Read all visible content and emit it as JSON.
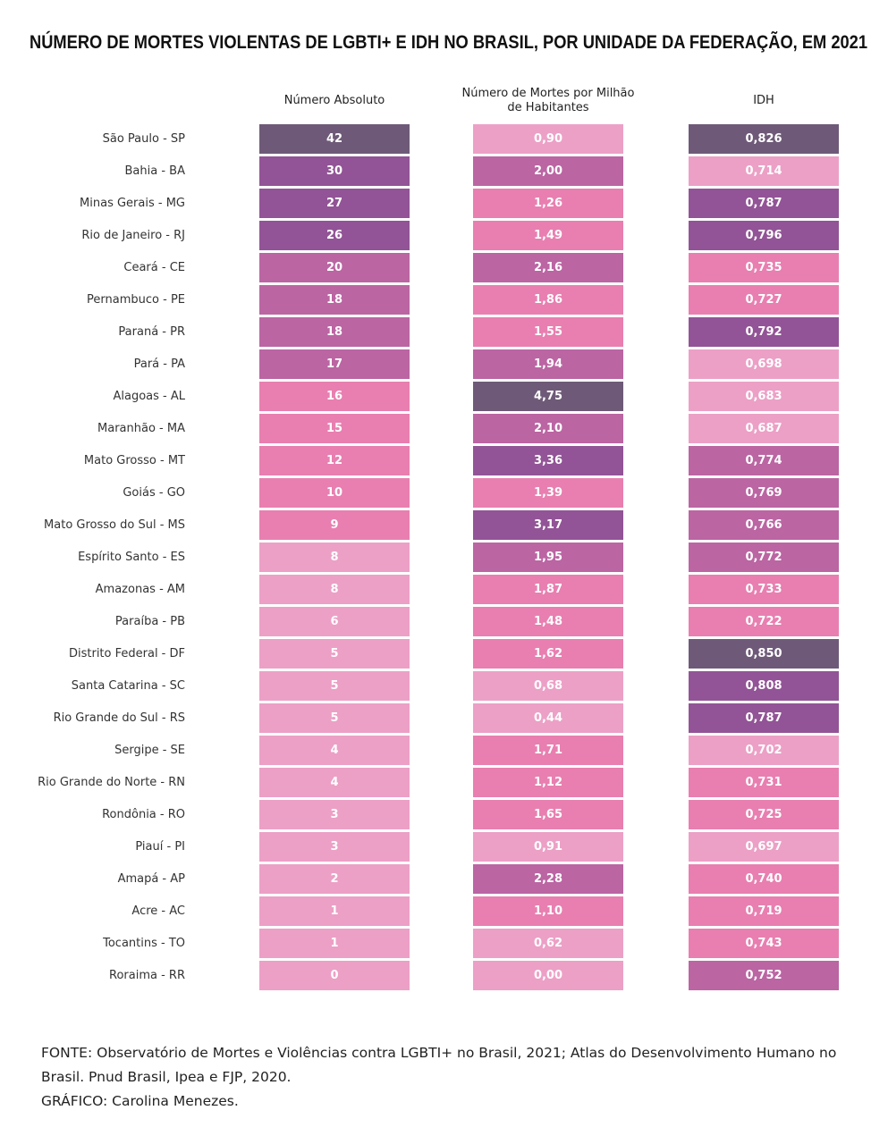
{
  "title": "NÚMERO DE MORTES VIOLENTAS DE LGBTI+ E IDH NO BRASIL, POR UNIDADE DA FEDERAÇÃO, EM 2021",
  "table": {
    "rows": [
      "São Paulo - SP",
      "Bahia - BA",
      "Minas Gerais - MG",
      "Rio de Janeiro - RJ",
      "Ceará - CE",
      "Pernambuco - PE",
      "Paraná - PR",
      "Pará - PA",
      "Alagoas - AL",
      "Maranhão - MA",
      "Mato Grosso - MT",
      "Goiás - GO",
      "Mato Grosso do Sul - MS",
      "Espírito Santo - ES",
      "Amazonas - AM",
      "Paraíba - PB",
      "Distrito Federal - DF",
      "Santa Catarina - SC",
      "Rio Grande do Sul - RS",
      "Sergipe - SE",
      "Rio Grande do Norte - RN",
      "Rondônia - RO",
      "Piauí - PI",
      "Amapá - AP",
      "Acre - AC",
      "Tocantins - TO",
      "Roraima - RR"
    ],
    "columns": [
      {
        "header": "Número Absoluto",
        "values": [
          "42",
          "30",
          "27",
          "26",
          "20",
          "18",
          "18",
          "17",
          "16",
          "15",
          "12",
          "10",
          "9",
          "8",
          "8",
          "6",
          "5",
          "5",
          "5",
          "4",
          "4",
          "3",
          "3",
          "2",
          "1",
          "1",
          "0"
        ],
        "colors": [
          "#6e5a78",
          "#925496",
          "#925496",
          "#925496",
          "#bb65a3",
          "#bb65a3",
          "#bb65a3",
          "#bb65a3",
          "#e87fb0",
          "#e87fb0",
          "#e87fb0",
          "#e87fb0",
          "#e87fb0",
          "#eca0c6",
          "#eca0c6",
          "#eca0c6",
          "#eca0c6",
          "#eca0c6",
          "#eca0c6",
          "#eca0c6",
          "#eca0c6",
          "#eca0c6",
          "#eca0c6",
          "#eca0c6",
          "#eca0c6",
          "#eca0c6",
          "#eca0c6"
        ]
      },
      {
        "header": "Número de Mortes por Milhão de Habitantes",
        "values": [
          "0,90",
          "2,00",
          "1,26",
          "1,49",
          "2,16",
          "1,86",
          "1,55",
          "1,94",
          "4,75",
          "2,10",
          "3,36",
          "1,39",
          "3,17",
          "1,95",
          "1,87",
          "1,48",
          "1,62",
          "0,68",
          "0,44",
          "1,71",
          "1,12",
          "1,65",
          "0,91",
          "2,28",
          "1,10",
          "0,62",
          "0,00"
        ],
        "colors": [
          "#eca0c6",
          "#bb65a3",
          "#e87fb0",
          "#e87fb0",
          "#bb65a3",
          "#e87fb0",
          "#e87fb0",
          "#bb65a3",
          "#6e5a78",
          "#bb65a3",
          "#925496",
          "#e87fb0",
          "#925496",
          "#bb65a3",
          "#e87fb0",
          "#e87fb0",
          "#e87fb0",
          "#eca0c6",
          "#eca0c6",
          "#e87fb0",
          "#e87fb0",
          "#e87fb0",
          "#eca0c6",
          "#bb65a3",
          "#e87fb0",
          "#eca0c6",
          "#eca0c6"
        ]
      },
      {
        "header": "IDH",
        "values": [
          "0,826",
          "0,714",
          "0,787",
          "0,796",
          "0,735",
          "0,727",
          "0,792",
          "0,698",
          "0,683",
          "0,687",
          "0,774",
          "0,769",
          "0,766",
          "0,772",
          "0,733",
          "0,722",
          "0,850",
          "0,808",
          "0,787",
          "0,702",
          "0,731",
          "0,725",
          "0,697",
          "0,740",
          "0,719",
          "0,743",
          "0,752"
        ],
        "colors": [
          "#6e5a78",
          "#eca0c6",
          "#925496",
          "#925496",
          "#e87fb0",
          "#e87fb0",
          "#925496",
          "#eca0c6",
          "#eca0c6",
          "#eca0c6",
          "#bb65a3",
          "#bb65a3",
          "#bb65a3",
          "#bb65a3",
          "#e87fb0",
          "#e87fb0",
          "#6e5a78",
          "#925496",
          "#925496",
          "#eca0c6",
          "#e87fb0",
          "#e87fb0",
          "#eca0c6",
          "#e87fb0",
          "#e87fb0",
          "#e87fb0",
          "#bb65a3"
        ]
      }
    ]
  },
  "footer": {
    "source": "FONTE: Observatório de Mortes e Violências contra LGBTI+ no Brasil, 2021; Atlas do Desenvolvimento Humano no Brasil. Pnud Brasil, Ipea e FJP, 2020.",
    "credit": "GRÁFICO: Carolina Menezes."
  }
}
